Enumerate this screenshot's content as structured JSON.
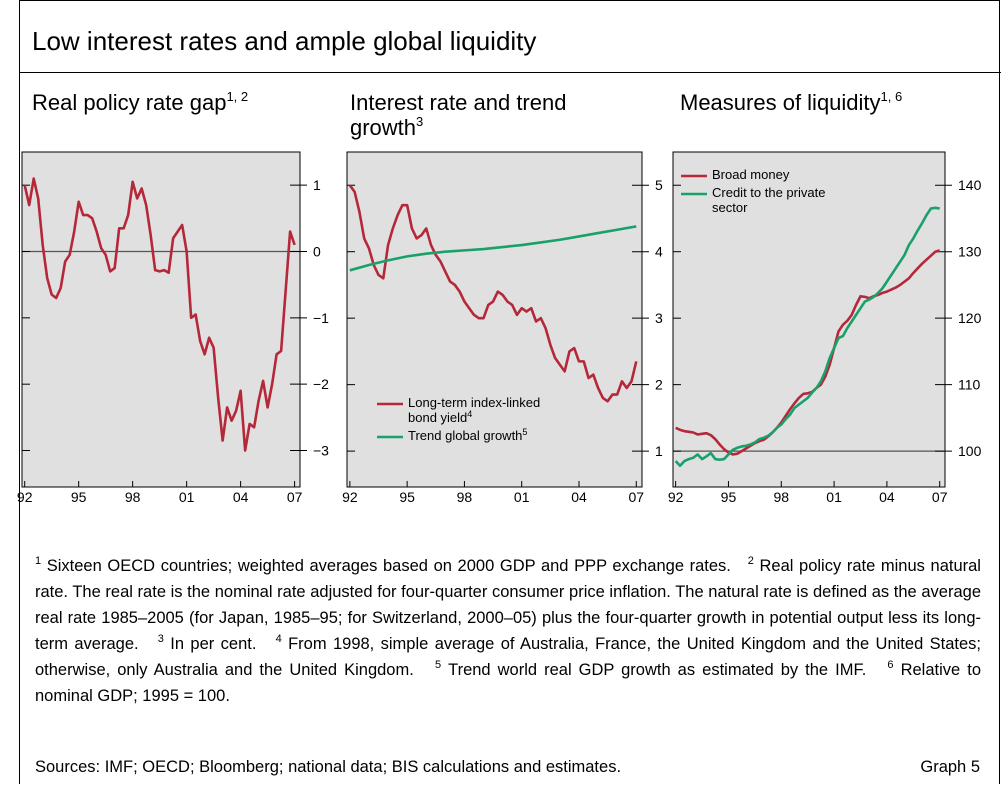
{
  "title": "Low interest rates and ample global liquidity",
  "chart_data": [
    {
      "type": "line",
      "title": "Real policy rate gap",
      "title_sup": "1, 2",
      "x": [
        1992,
        1992.25,
        1992.5,
        1992.75,
        1993,
        1993.25,
        1993.5,
        1993.75,
        1994,
        1994.25,
        1994.5,
        1994.75,
        1995,
        1995.25,
        1995.5,
        1995.75,
        1996,
        1996.25,
        1996.5,
        1996.75,
        1997,
        1997.25,
        1997.5,
        1997.75,
        1998,
        1998.25,
        1998.5,
        1998.75,
        1999,
        1999.25,
        1999.5,
        1999.75,
        2000,
        2000.25,
        2000.5,
        2000.75,
        2001,
        2001.25,
        2001.5,
        2001.75,
        2002,
        2002.25,
        2002.5,
        2002.75,
        2003,
        2003.25,
        2003.5,
        2003.75,
        2004,
        2004.25,
        2004.5,
        2004.75,
        2005,
        2005.25,
        2005.5,
        2005.75,
        2006,
        2006.25,
        2006.5,
        2006.75,
        2007
      ],
      "series": [
        {
          "color": "#b5283a",
          "values": [
            1.0,
            0.7,
            1.1,
            0.8,
            0.1,
            -0.4,
            -0.65,
            -0.7,
            -0.55,
            -0.15,
            -0.05,
            0.3,
            0.75,
            0.55,
            0.55,
            0.5,
            0.3,
            0.05,
            -0.05,
            -0.3,
            -0.25,
            0.35,
            0.35,
            0.55,
            1.05,
            0.8,
            0.95,
            0.7,
            0.25,
            -0.28,
            -0.3,
            -0.28,
            -0.32,
            0.2,
            0.3,
            0.4,
            0.0,
            -1.0,
            -0.95,
            -1.35,
            -1.55,
            -1.3,
            -1.45,
            -2.2,
            -2.85,
            -2.35,
            -2.55,
            -2.4,
            -2.1,
            -3.0,
            -2.6,
            -2.65,
            -2.25,
            -1.95,
            -2.35,
            -2.0,
            -1.55,
            -1.5,
            -0.6,
            0.3,
            0.1
          ]
        }
      ],
      "xlim": [
        1991.85,
        2007.3
      ],
      "xticks": [
        {
          "value": 1992,
          "label": "92"
        },
        {
          "value": 1995,
          "label": "95"
        },
        {
          "value": 1998,
          "label": "98"
        },
        {
          "value": 2001,
          "label": "01"
        },
        {
          "value": 2004,
          "label": "04"
        },
        {
          "value": 2007,
          "label": "07"
        }
      ],
      "ylim": [
        -3.55,
        1.5
      ],
      "yticks": [
        {
          "value": -3,
          "label": "−3"
        },
        {
          "value": -2,
          "label": "−2"
        },
        {
          "value": -1,
          "label": "−1"
        },
        0,
        1
      ],
      "hline": 0,
      "background": "#e0e0e0",
      "grid": false
    },
    {
      "type": "line",
      "title": "Interest rate and trend growth",
      "title_sup": "3",
      "x": [
        1992,
        1992.25,
        1992.5,
        1992.75,
        1993,
        1993.25,
        1993.5,
        1993.75,
        1994,
        1994.25,
        1994.5,
        1994.75,
        1995,
        1995.25,
        1995.5,
        1995.75,
        1996,
        1996.25,
        1996.5,
        1996.75,
        1997,
        1997.25,
        1997.5,
        1997.75,
        1998,
        1998.25,
        1998.5,
        1998.75,
        1999,
        1999.25,
        1999.5,
        1999.75,
        2000,
        2000.25,
        2000.5,
        2000.75,
        2001,
        2001.25,
        2001.5,
        2001.75,
        2002,
        2002.25,
        2002.5,
        2002.75,
        2003,
        2003.25,
        2003.5,
        2003.75,
        2004,
        2004.25,
        2004.5,
        2004.75,
        2005,
        2005.25,
        2005.5,
        2005.75,
        2006,
        2006.25,
        2006.5,
        2006.75,
        2007
      ],
      "series": [
        {
          "name": "Long-term index-linked bond yield",
          "name_sup": "4",
          "color": "#b5283a",
          "values": [
            5.0,
            4.9,
            4.6,
            4.2,
            4.05,
            3.8,
            3.65,
            3.6,
            4.1,
            4.35,
            4.55,
            4.7,
            4.7,
            4.35,
            4.2,
            4.25,
            4.35,
            4.1,
            3.95,
            3.85,
            3.7,
            3.55,
            3.5,
            3.4,
            3.25,
            3.15,
            3.05,
            3.0,
            3.0,
            3.2,
            3.25,
            3.4,
            3.35,
            3.25,
            3.2,
            3.05,
            3.15,
            3.1,
            3.15,
            2.95,
            3.0,
            2.85,
            2.6,
            2.4,
            2.3,
            2.2,
            2.5,
            2.55,
            2.35,
            2.35,
            2.1,
            2.15,
            1.95,
            1.8,
            1.75,
            1.85,
            1.85,
            2.05,
            1.95,
            2.05,
            2.35
          ]
        },
        {
          "name": "Trend global growth",
          "name_sup": "5",
          "color": "#1aa06a",
          "x": [
            1992,
            1993,
            1994,
            1995,
            1996,
            1997,
            1998,
            1999,
            2000,
            2001,
            2002,
            2003,
            2004,
            2005,
            2006,
            2007
          ],
          "values": [
            3.72,
            3.8,
            3.87,
            3.93,
            3.97,
            4.0,
            4.02,
            4.04,
            4.07,
            4.1,
            4.14,
            4.18,
            4.23,
            4.28,
            4.33,
            4.38
          ]
        }
      ],
      "xlim": [
        1991.85,
        2007.3
      ],
      "xticks": [
        {
          "value": 1992,
          "label": "92"
        },
        {
          "value": 1995,
          "label": "95"
        },
        {
          "value": 1998,
          "label": "98"
        },
        {
          "value": 2001,
          "label": "01"
        },
        {
          "value": 2004,
          "label": "04"
        },
        {
          "value": 2007,
          "label": "07"
        }
      ],
      "ylim": [
        0.46,
        5.5
      ],
      "yticks": [
        1,
        2,
        3,
        4,
        5
      ],
      "legend": "lower left",
      "background": "#e0e0e0",
      "grid": false
    },
    {
      "type": "line",
      "title": "Measures of liquidity",
      "title_sup": "1, 6",
      "x": [
        1992,
        1992.25,
        1992.5,
        1992.75,
        1993,
        1993.25,
        1993.5,
        1993.75,
        1994,
        1994.25,
        1994.5,
        1994.75,
        1995,
        1995.25,
        1995.5,
        1995.75,
        1996,
        1996.25,
        1996.5,
        1996.75,
        1997,
        1997.25,
        1997.5,
        1997.75,
        1998,
        1998.25,
        1998.5,
        1998.75,
        1999,
        1999.25,
        1999.5,
        1999.75,
        2000,
        2000.25,
        2000.5,
        2000.75,
        2001,
        2001.25,
        2001.5,
        2001.75,
        2002,
        2002.25,
        2002.5,
        2002.75,
        2003,
        2003.25,
        2003.5,
        2003.75,
        2004,
        2004.25,
        2004.5,
        2004.75,
        2005,
        2005.25,
        2005.5,
        2005.75,
        2006,
        2006.25,
        2006.5,
        2006.75,
        2007
      ],
      "series": [
        {
          "name": "Broad money",
          "color": "#b5283a",
          "values": [
            103.5,
            103.2,
            103.0,
            102.9,
            102.8,
            102.5,
            102.6,
            102.7,
            102.4,
            101.8,
            101.0,
            100.3,
            99.8,
            99.5,
            99.6,
            100.0,
            100.4,
            100.8,
            101.2,
            101.5,
            101.7,
            102.2,
            102.8,
            103.5,
            104.3,
            105.3,
            106.3,
            107.2,
            108.0,
            108.6,
            108.7,
            108.9,
            109.5,
            110.0,
            111.2,
            113.0,
            115.5,
            118.0,
            119.0,
            119.6,
            120.5,
            122.0,
            123.3,
            123.2,
            123.0,
            123.3,
            123.5,
            123.8,
            124.0,
            124.3,
            124.6,
            125.0,
            125.5,
            126.0,
            126.8,
            127.5,
            128.2,
            128.8,
            129.4,
            130.0,
            130.2
          ]
        },
        {
          "name": "Credit to the private sector",
          "color": "#1aa06a",
          "values": [
            98.5,
            97.8,
            98.5,
            98.8,
            99.0,
            99.5,
            98.8,
            99.2,
            99.7,
            98.8,
            98.7,
            98.8,
            99.5,
            100.2,
            100.5,
            100.7,
            100.8,
            101.0,
            101.3,
            101.8,
            102.0,
            102.3,
            102.8,
            103.5,
            104.0,
            104.8,
            105.5,
            106.5,
            107.0,
            107.5,
            108.0,
            108.8,
            109.5,
            110.5,
            112.0,
            114.0,
            115.5,
            117.0,
            117.3,
            118.5,
            119.5,
            120.5,
            121.5,
            122.5,
            122.8,
            123.2,
            123.8,
            124.5,
            125.5,
            126.5,
            127.5,
            128.5,
            129.5,
            131.0,
            132.0,
            133.2,
            134.3,
            135.5,
            136.5,
            136.6,
            136.5
          ]
        }
      ],
      "xlim": [
        1991.85,
        2007.3
      ],
      "xticks": [
        {
          "value": 1992,
          "label": "92"
        },
        {
          "value": 1995,
          "label": "95"
        },
        {
          "value": 1998,
          "label": "98"
        },
        {
          "value": 2001,
          "label": "01"
        },
        {
          "value": 2004,
          "label": "04"
        },
        {
          "value": 2007,
          "label": "07"
        }
      ],
      "ylim": [
        94.6,
        145
      ],
      "yticks": [
        100,
        110,
        120,
        130,
        140
      ],
      "hline": 100,
      "legend": "upper left",
      "background": "#e0e0e0",
      "grid": false
    }
  ],
  "footnotes": [
    {
      "num": "1",
      "text": "Sixteen OECD countries; weighted averages based on 2000 GDP and PPP exchange rates."
    },
    {
      "num": "2",
      "text": "Real policy rate minus natural rate. The real rate is the nominal rate adjusted for four-quarter consumer price inflation. The natural rate is defined as the average real rate 1985–2005 (for Japan, 1985–95; for Switzerland, 2000–05) plus the four-quarter growth in potential output less its long-term average."
    },
    {
      "num": "3",
      "text": "In per cent."
    },
    {
      "num": "4",
      "text": "From 1998, simple average of Australia, France, the United Kingdom and the United States; otherwise, only Australia and the United Kingdom."
    },
    {
      "num": "5",
      "text": "Trend world real GDP growth as estimated by the IMF."
    },
    {
      "num": "6",
      "text": "Relative to nominal GDP; 1995 = 100."
    }
  ],
  "sources": "Sources: IMF; OECD; Bloomberg; national data; BIS calculations and estimates.",
  "graph_label": "Graph 5"
}
